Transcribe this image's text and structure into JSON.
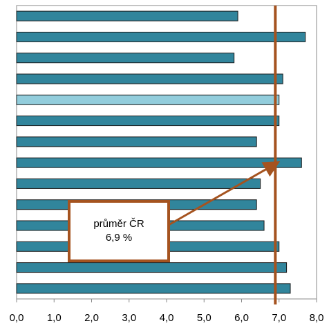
{
  "chart_data": {
    "type": "hbar",
    "categories": [
      null,
      null,
      null,
      null,
      null,
      null,
      null,
      null,
      null,
      null,
      null,
      null,
      null,
      null
    ],
    "values": [
      5.9,
      7.7,
      5.8,
      7.1,
      7.0,
      7.0,
      6.4,
      7.6,
      6.5,
      6.4,
      6.6,
      7.0,
      7.2,
      7.3
    ],
    "colors": [
      "#31859c",
      "#31859c",
      "#31859c",
      "#31859c",
      "#92cddc",
      "#31859c",
      "#31859c",
      "#31859c",
      "#31859c",
      "#31859c",
      "#31859c",
      "#31859c",
      "#31859c",
      "#31859c"
    ],
    "xlim": [
      0,
      8
    ],
    "xticks": [
      {
        "value": 0,
        "label": "0,0"
      },
      {
        "value": 1,
        "label": "1,0"
      },
      {
        "value": 2,
        "label": "2,0"
      },
      {
        "value": 3,
        "label": "3,0"
      },
      {
        "value": 4,
        "label": "4,0"
      },
      {
        "value": 5,
        "label": "5,0"
      },
      {
        "value": 6,
        "label": "6,0"
      },
      {
        "value": 7,
        "label": "7,0"
      },
      {
        "value": 8,
        "label": "8,0"
      }
    ],
    "reference_line": {
      "value": 6.9,
      "label": "průměr ČR",
      "value_label": "6,9 %",
      "color": "#a5531f"
    }
  }
}
